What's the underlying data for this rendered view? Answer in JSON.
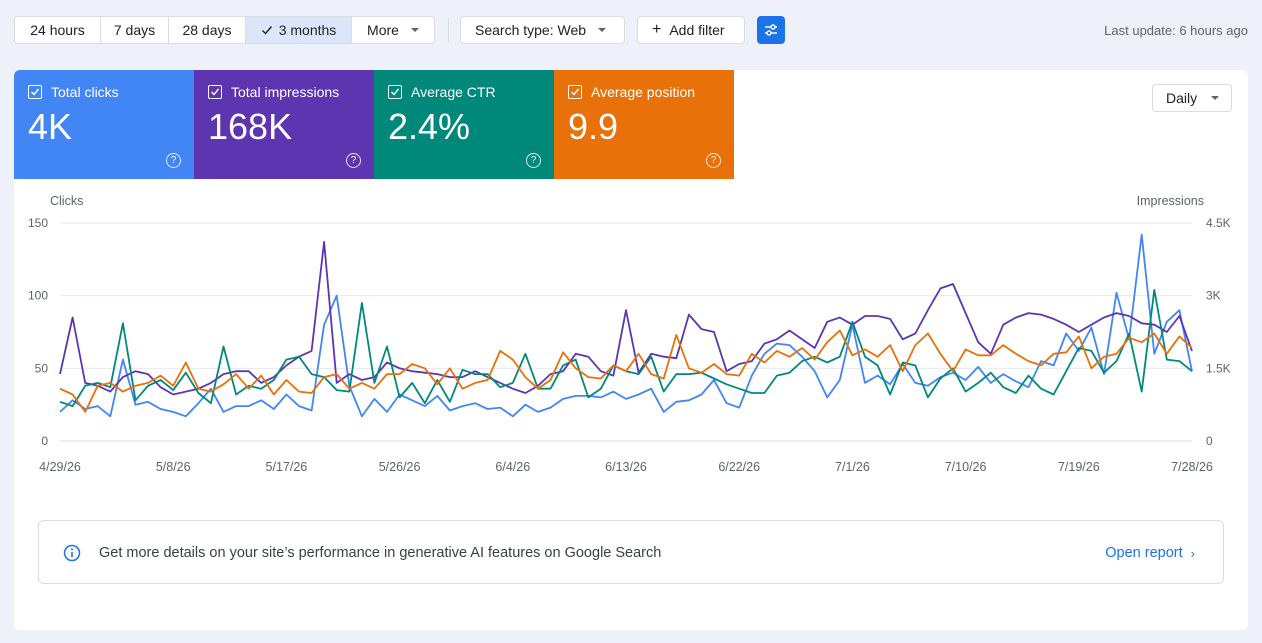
{
  "toolbar": {
    "ranges": [
      "24 hours",
      "7 days",
      "28 days",
      "3 months",
      "More"
    ],
    "active_range": "3 months",
    "search_type": "Search type: Web",
    "add_filter": "Add filter",
    "last_update": "Last update: 6 hours ago"
  },
  "metrics": [
    {
      "label": "Total clicks",
      "value": "4K",
      "color": "#4285f4"
    },
    {
      "label": "Total impressions",
      "value": "168K",
      "color": "#5e35b1"
    },
    {
      "label": "Average CTR",
      "value": "2.4%",
      "color": "#00897b"
    },
    {
      "label": "Average position",
      "value": "9.9",
      "color": "#e8710a"
    }
  ],
  "granularity": "Daily",
  "chart_data": {
    "type": "line",
    "ylabel_left": "Clicks",
    "ylabel_right": "Impressions",
    "y_left_ticks": [
      "150",
      "100",
      "50",
      "0"
    ],
    "y_right_ticks": [
      "4.5K",
      "3K",
      "1.5K",
      "0"
    ],
    "ylim_left": [
      0,
      150
    ],
    "ylim_right": [
      0,
      4500
    ],
    "x_tick_labels": [
      "4/29/26",
      "5/8/26",
      "5/17/26",
      "5/26/26",
      "6/4/26",
      "6/13/26",
      "6/22/26",
      "7/1/26",
      "7/10/26",
      "7/19/26",
      "7/28/26"
    ],
    "x_tick_index": [
      0,
      9,
      18,
      27,
      36,
      45,
      54,
      63,
      72,
      81,
      90
    ],
    "grid": true,
    "series": [
      {
        "name": "Total clicks",
        "color": "#4285f4",
        "axis": "left",
        "values": [
          20,
          28,
          22,
          24,
          17,
          56,
          25,
          27,
          22,
          20,
          17,
          26,
          36,
          20,
          24,
          24,
          28,
          22,
          32,
          24,
          21,
          80,
          100,
          38,
          17,
          29,
          20,
          32,
          28,
          24,
          31,
          21,
          24,
          26,
          22,
          23,
          17,
          25,
          20,
          23,
          29,
          31,
          31,
          30,
          34,
          29,
          32,
          36,
          20,
          27,
          28,
          32,
          42,
          26,
          23,
          45,
          60,
          67,
          66,
          58,
          48,
          30,
          42,
          80,
          40,
          45,
          39,
          53,
          40,
          38,
          44,
          47,
          42,
          51,
          40,
          46,
          41,
          37,
          55,
          52,
          74,
          62,
          78,
          46,
          102,
          70,
          142,
          60,
          82,
          90,
          48
        ]
      },
      {
        "name": "Total impressions",
        "color": "#5e35b1",
        "axis": "left",
        "values": [
          46,
          85,
          40,
          38,
          34,
          44,
          48,
          46,
          37,
          32,
          34,
          36,
          40,
          46,
          48,
          48,
          40,
          44,
          52,
          58,
          62,
          137,
          40,
          46,
          42,
          44,
          54,
          50,
          48,
          47,
          46,
          44,
          44,
          48,
          44,
          40,
          36,
          33,
          38,
          46,
          48,
          60,
          58,
          48,
          45,
          90,
          47,
          60,
          58,
          57,
          87,
          77,
          75,
          48,
          53,
          55,
          67,
          70,
          76,
          70,
          64,
          82,
          85,
          80,
          86,
          86,
          84,
          70,
          74,
          90,
          105,
          108,
          88,
          68,
          60,
          80,
          85,
          88,
          87,
          84,
          80,
          75,
          80,
          85,
          88,
          86,
          81,
          80,
          75,
          86,
          62
        ]
      },
      {
        "name": "Average CTR",
        "color": "#00897b",
        "axis": "left",
        "values": [
          27,
          24,
          38,
          40,
          37,
          81,
          28,
          38,
          42,
          35,
          47,
          33,
          26,
          65,
          32,
          38,
          36,
          42,
          56,
          58,
          46,
          44,
          35,
          34,
          95,
          40,
          65,
          30,
          40,
          26,
          42,
          27,
          49,
          46,
          46,
          37,
          40,
          60,
          36,
          36,
          52,
          56,
          30,
          36,
          52,
          48,
          46,
          58,
          34,
          46,
          46,
          47,
          43,
          39,
          36,
          33,
          33,
          45,
          47,
          55,
          58,
          54,
          58,
          82,
          58,
          52,
          32,
          54,
          52,
          30,
          43,
          50,
          34,
          40,
          47,
          37,
          33,
          45,
          36,
          32,
          48,
          64,
          62,
          47,
          55,
          74,
          34,
          104,
          56,
          55,
          48
        ]
      },
      {
        "name": "Average position",
        "color": "#e8710a",
        "axis": "left",
        "values": [
          36,
          32,
          20,
          38,
          40,
          34,
          38,
          40,
          45,
          38,
          54,
          36,
          34,
          39,
          46,
          36,
          45,
          32,
          42,
          34,
          33,
          44,
          46,
          36,
          40,
          36,
          46,
          46,
          53,
          50,
          39,
          50,
          36,
          40,
          42,
          62,
          56,
          44,
          36,
          42,
          61,
          50,
          44,
          43,
          52,
          48,
          60,
          46,
          43,
          73,
          50,
          47,
          53,
          46,
          45,
          60,
          54,
          62,
          58,
          64,
          56,
          68,
          76,
          59,
          63,
          58,
          66,
          48,
          66,
          74,
          60,
          48,
          63,
          59,
          59,
          66,
          60,
          55,
          52,
          60,
          61,
          72,
          50,
          58,
          60,
          71,
          68,
          74,
          60,
          72,
          64
        ]
      }
    ]
  },
  "banner": {
    "text": "Get more details on your site’s performance in generative AI features on Google Search",
    "link": "Open report"
  }
}
